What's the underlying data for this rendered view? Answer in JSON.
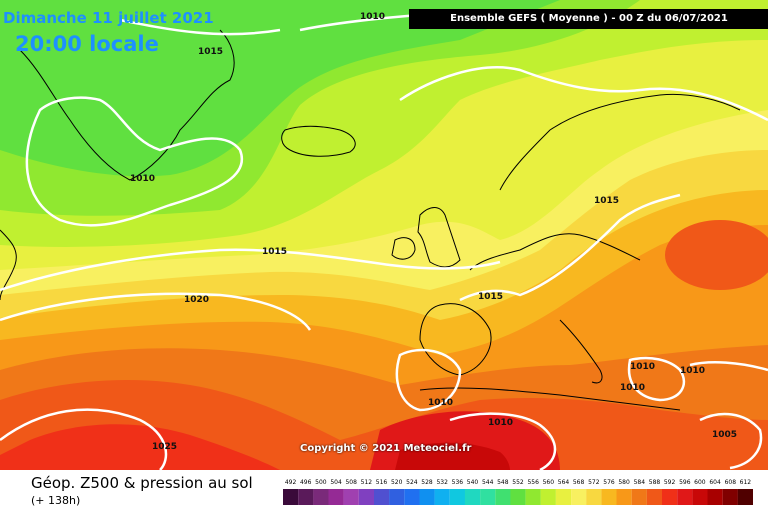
{
  "header": {
    "date": "Dimanche 11 juillet 2021",
    "time": "20:00 locale",
    "model_run": "Ensemble GEFS  ( Moyenne )  - 00 Z du 06/07/2021"
  },
  "copyright": "Copyright © 2021 Meteociel.fr",
  "legend": {
    "title": "Géop. Z500 & pression au sol",
    "forecast_hour": "(+ 138h)",
    "scale_values": [
      "492",
      "496",
      "500",
      "504",
      "508",
      "512",
      "516",
      "520",
      "524",
      "528",
      "532",
      "536",
      "540",
      "544",
      "548",
      "552",
      "556",
      "560",
      "564",
      "568",
      "572",
      "576",
      "580",
      "584",
      "588",
      "592",
      "596",
      "600",
      "604",
      "608",
      "612"
    ],
    "scale_colors": [
      "#3a0a3a",
      "#5a1a5a",
      "#7a2a7a",
      "#952a95",
      "#a040b0",
      "#8040c0",
      "#5050d0",
      "#3060e0",
      "#2070f0",
      "#1090f0",
      "#10b0f0",
      "#10c8e0",
      "#20d8c0",
      "#30e0a0",
      "#40e070",
      "#60e040",
      "#90e830",
      "#c0f030",
      "#e8f040",
      "#f8f060",
      "#f8d840",
      "#f8b820",
      "#f89818",
      "#f07818",
      "#f05818",
      "#f03018",
      "#e01818",
      "#c80808",
      "#a80000",
      "#800000",
      "#500000"
    ]
  },
  "isobars": {
    "labels": [
      "1010",
      "1015",
      "1010",
      "1015",
      "1015",
      "1020",
      "1015",
      "1010",
      "1010",
      "1010",
      "1010",
      "1025",
      "1005",
      "1010"
    ]
  },
  "colors": {
    "isobar": "#ffffff",
    "land_outline": "#000000"
  }
}
